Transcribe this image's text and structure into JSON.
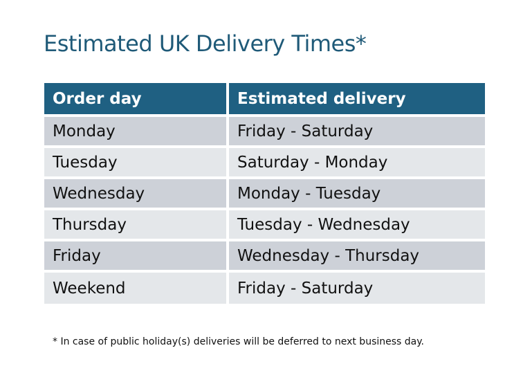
{
  "title": "Estimated UK Delivery Times*",
  "table": {
    "headers": [
      "Order day",
      "Estimated delivery"
    ],
    "rows": [
      [
        "Monday",
        "Friday - Saturday"
      ],
      [
        "Tuesday",
        "Saturday - Monday"
      ],
      [
        "Wednesday",
        "Monday - Tuesday"
      ],
      [
        "Thursday",
        "Tuesday - Wednesday"
      ],
      [
        "Friday",
        "Wednesday - Thursday"
      ],
      [
        "Weekend",
        "Friday - Saturday"
      ]
    ]
  },
  "footnote": "* In case of public holiday(s) deliveries will be deferred to next business day.",
  "colors": {
    "header": "#1f6082",
    "title": "#1f5a78",
    "row_dark": "#cdd1d8",
    "row_light": "#e4e7ea"
  }
}
